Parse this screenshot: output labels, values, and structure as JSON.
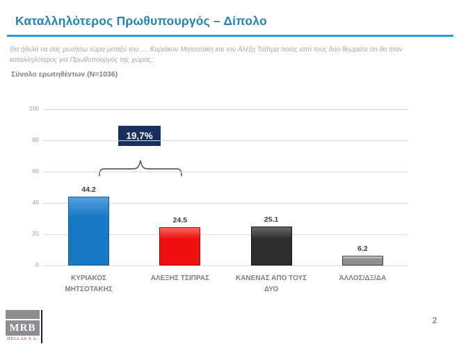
{
  "header": {
    "title": "Καταλληλότερος Πρωθυπουργός – Δίπολο",
    "question": "Θα ήθελα να σας ρωτήσω τώρα μεταξύ του .... Κυριάκου Μητσοτάκη και του Αλέξη Τσίπρα ποιος από τους δύο θεωρείτε ότι θα ήταν καταλληλότερος για Πρωθυπουργός της χώρας;",
    "base_label": "Σύνολο ερωτηθέντων (N=1036)"
  },
  "chart_data": {
    "type": "bar",
    "categories": [
      "ΚΥΡΙΑΚΟΣ ΜΗΤΣΟΤΑΚΗΣ",
      "ΑΛΕΞΗΣ ΤΣΙΠΡΑΣ",
      "ΚΑΝΕΝΑΣ ΑΠΟ ΤΟΥΣ ΔΥΟ",
      "ΆΛΛΟΣ/ΔΞ/ΔΑ"
    ],
    "values": [
      44.2,
      24.5,
      25.1,
      6.2
    ],
    "value_labels": [
      "44.2",
      "24.5",
      "25.1",
      "6.2"
    ],
    "bar_styles": [
      {
        "fill": "#1878c4",
        "highlight": "#55a0dd",
        "border": "#0e5d9e"
      },
      {
        "fill": "#ee0f0f",
        "highlight": "#f8655a",
        "border": "#b20000"
      },
      {
        "fill": "#2e2e2e",
        "highlight": "#6a6a6a",
        "border": "#111111"
      },
      {
        "fill": "#8f8f8f",
        "highlight": "#d8d8d8",
        "border": "#3e3e3e"
      }
    ],
    "title": "",
    "xlabel": "",
    "ylabel": "",
    "ylim": [
      0,
      100
    ],
    "yticks": [
      0,
      20,
      40,
      60,
      80,
      100
    ],
    "grid": true,
    "legend": false,
    "annotation": {
      "label": "19,7%",
      "bg_color": "#17305f",
      "text_color": "#ffffff",
      "between_categories": [
        0,
        1
      ],
      "meaning": "difference between first and second bar"
    }
  },
  "footer": {
    "logo_text": "MRB",
    "logo_subtext": "HELLAS S.A.",
    "page_number": "2"
  }
}
